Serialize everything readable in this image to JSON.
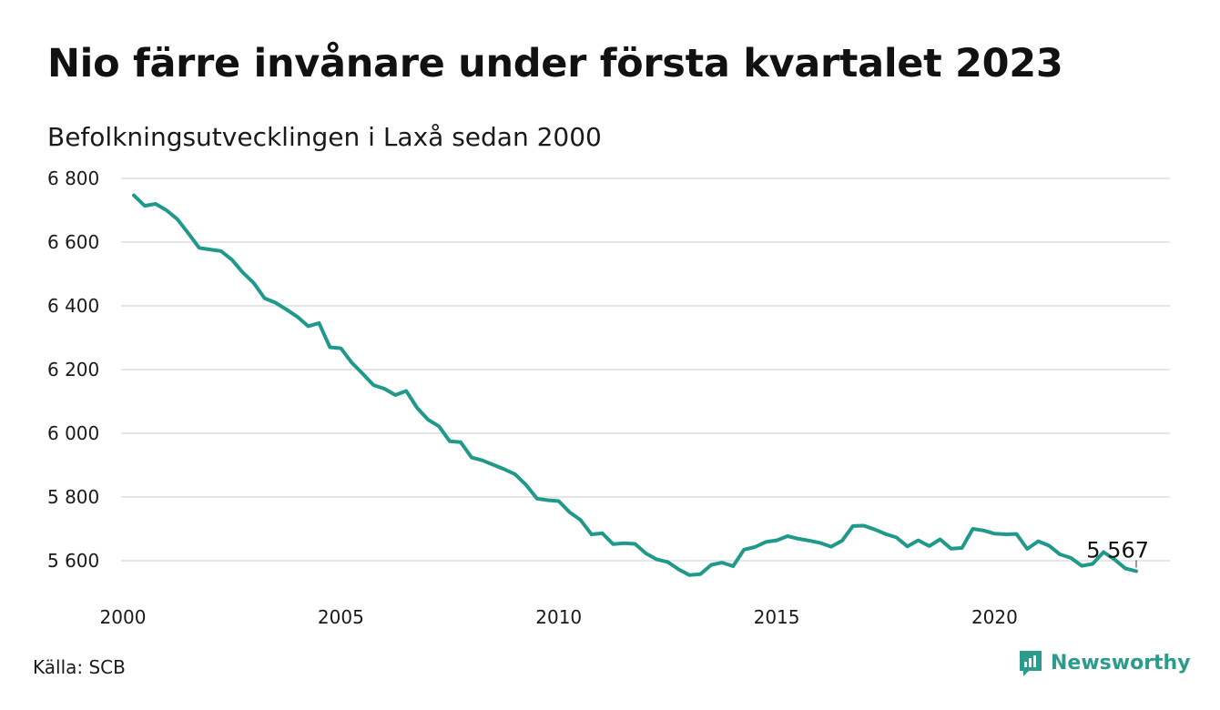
{
  "title": "Nio färre invånare under första kvartalet 2023",
  "subtitle": "Befolkningsutvecklingen i Laxå sedan 2000",
  "source": "Källa: SCB",
  "brand": "Newsworthy",
  "icons": {
    "brand_logo": "newsworthy-logo-icon"
  },
  "colors": {
    "line": "#1f9a8a",
    "brand": "#2b9b8c",
    "grid": "#dddddd"
  },
  "chart_data": {
    "type": "line",
    "title": "Nio färre invånare under första kvartalet 2023",
    "subtitle": "Befolkningsutvecklingen i Laxå sedan 2000",
    "xlabel": "",
    "ylabel": "",
    "xlim": [
      2000,
      2023.25
    ],
    "ylim": [
      5500,
      6800
    ],
    "grid": true,
    "x_ticks": [
      2000,
      2005,
      2010,
      2015,
      2020
    ],
    "x_tick_labels": [
      "2000",
      "2005",
      "2010",
      "2015",
      "2020"
    ],
    "y_ticks": [
      5600,
      5800,
      6000,
      6200,
      6400,
      6600,
      6800
    ],
    "y_tick_labels": [
      "5 600",
      "5 800",
      "6 000",
      "6 200",
      "6 400",
      "6 600",
      "6 800"
    ],
    "end_label": "5 567",
    "series": [
      {
        "x": [
          2000.25,
          2000.5,
          2000.75,
          2001.0,
          2001.25,
          2001.5,
          2001.75,
          2002.0,
          2002.25,
          2002.5,
          2002.75,
          2003.0,
          2003.25,
          2003.5,
          2003.75,
          2004.0,
          2004.25,
          2004.5,
          2004.75,
          2005.0,
          2005.25,
          2005.5,
          2005.75,
          2006.0,
          2006.25,
          2006.5,
          2006.75,
          2007.0,
          2007.25,
          2007.5,
          2007.75,
          2008.0,
          2008.25,
          2008.5,
          2008.75,
          2009.0,
          2009.25,
          2009.5,
          2009.75,
          2010.0,
          2010.25,
          2010.5,
          2010.75,
          2011.0,
          2011.25,
          2011.5,
          2011.75,
          2012.0,
          2012.25,
          2012.5,
          2012.75,
          2013.0,
          2013.25,
          2013.5,
          2013.75,
          2014.0,
          2014.25,
          2014.5,
          2014.75,
          2015.0,
          2015.25,
          2015.5,
          2015.75,
          2016.0,
          2016.25,
          2016.5,
          2016.75,
          2017.0,
          2017.25,
          2017.5,
          2017.75,
          2018.0,
          2018.25,
          2018.5,
          2018.75,
          2019.0,
          2019.25,
          2019.5,
          2019.75,
          2020.0,
          2020.25,
          2020.5,
          2020.75,
          2021.0,
          2021.25,
          2021.5,
          2021.75,
          2022.0,
          2022.25,
          2022.5,
          2022.75,
          2023.0,
          2023.25
        ],
        "values": [
          6747,
          6714,
          6720,
          6700,
          6672,
          6628,
          6582,
          6577,
          6572,
          6545,
          6505,
          6472,
          6424,
          6410,
          6389,
          6366,
          6336,
          6346,
          6270,
          6267,
          6222,
          6187,
          6151,
          6140,
          6120,
          6133,
          6080,
          6043,
          6022,
          5975,
          5972,
          5924,
          5915,
          5901,
          5887,
          5871,
          5838,
          5795,
          5790,
          5787,
          5752,
          5728,
          5683,
          5686,
          5652,
          5655,
          5653,
          5623,
          5604,
          5596,
          5573,
          5555,
          5558,
          5587,
          5594,
          5583,
          5635,
          5643,
          5659,
          5664,
          5677,
          5669,
          5663,
          5656,
          5644,
          5663,
          5709,
          5710,
          5698,
          5684,
          5673,
          5645,
          5664,
          5646,
          5667,
          5638,
          5640,
          5700,
          5695,
          5685,
          5683,
          5684,
          5637,
          5661,
          5647,
          5620,
          5609,
          5584,
          5590,
          5627,
          5604,
          5576,
          5567
        ]
      }
    ]
  }
}
